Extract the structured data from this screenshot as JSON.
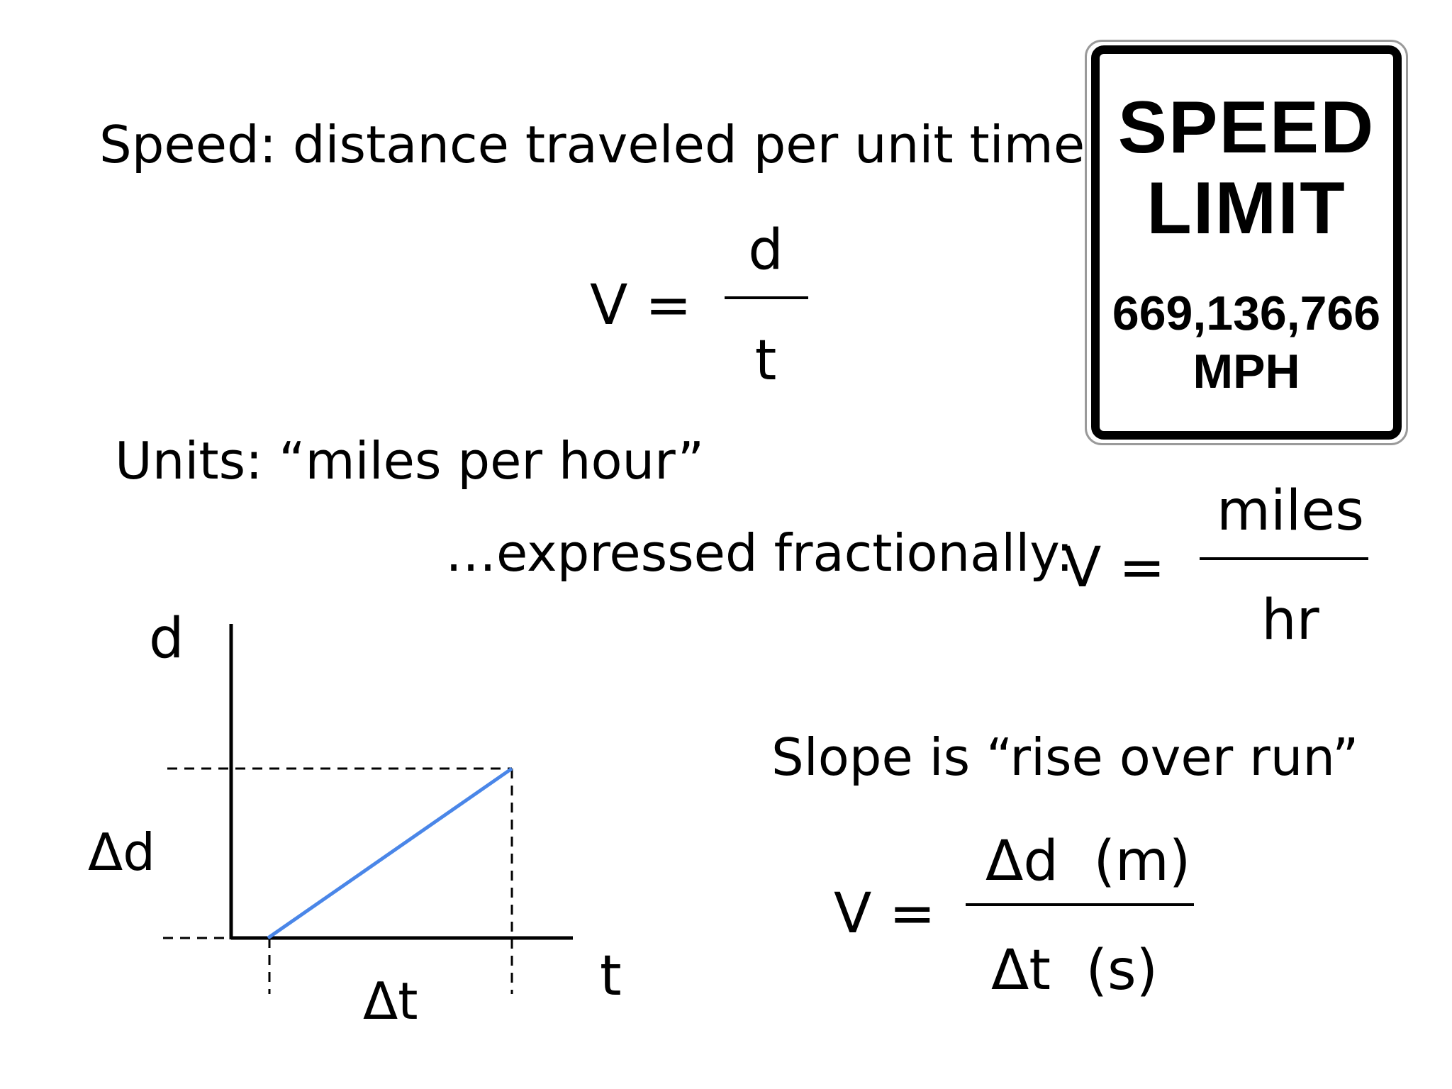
{
  "definition": "Speed: distance traveled per unit time",
  "formula1": {
    "lhs": "V =",
    "numerator": "d",
    "denominator": "t"
  },
  "units_line": "Units: “miles per hour”",
  "expressed_line": "…expressed fractionally:",
  "formula2": {
    "lhs": "V =",
    "numerator": "miles",
    "denominator": "hr"
  },
  "sign": {
    "line1": "SPEED",
    "line2": "LIMIT",
    "speed": "669,136,766",
    "unit": "MPH"
  },
  "graph": {
    "y_axis_label": "d",
    "x_axis_label": "t",
    "delta_d_label": "Δd",
    "delta_t_label": "Δt",
    "line_color": "#4a86e8"
  },
  "slope_line": "Slope is “rise over run”",
  "formula3": {
    "lhs": "V =",
    "numerator": "Δd  (m)",
    "denominator": "Δt  (s)"
  }
}
